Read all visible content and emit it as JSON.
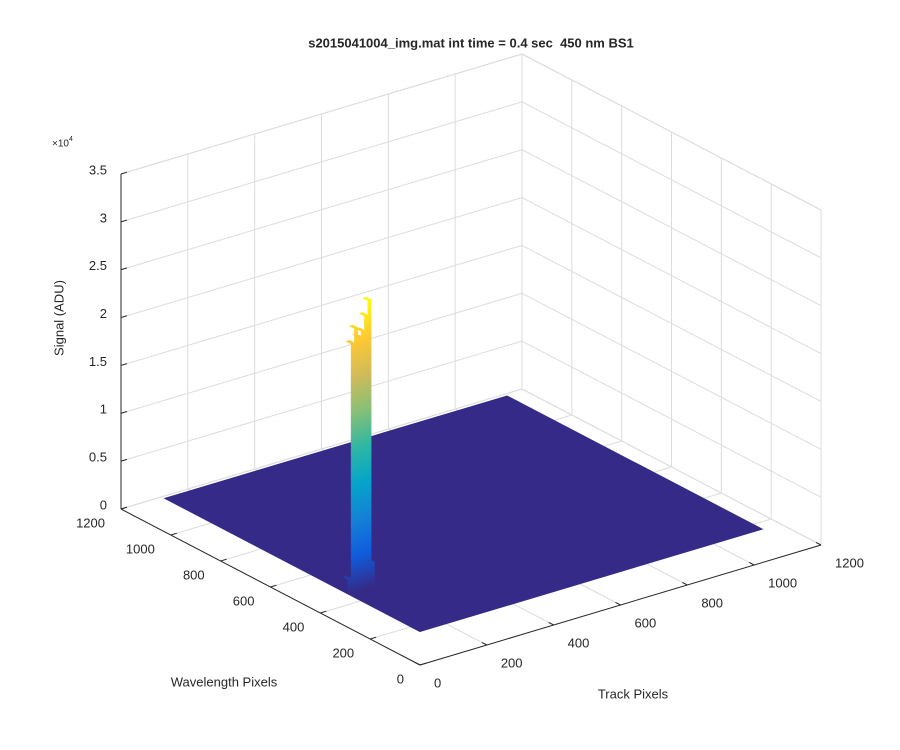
{
  "chart_data": {
    "type": "surface3d",
    "title": "s2015041004_img.mat int time = 0.4 sec  450 nm BS1",
    "xlabel": "Track Pixels",
    "ylabel": "Wavelength Pixels",
    "zlabel": "Signal (ADU)",
    "zexponent": "×10",
    "zexponent_power": "4",
    "xlim": [
      0,
      1200
    ],
    "xticks": [
      0,
      200,
      400,
      600,
      800,
      1000,
      1200
    ],
    "ylim": [
      0,
      1200
    ],
    "yticks": [
      0,
      200,
      400,
      600,
      800,
      1000,
      1200
    ],
    "zlim": [
      0,
      35000
    ],
    "zticks": [
      0,
      {
        "value": 5000,
        "label": "0.5"
      },
      {
        "value": 10000,
        "label": "1"
      },
      {
        "value": 15000,
        "label": "1.5"
      },
      {
        "value": 20000,
        "label": "2"
      },
      {
        "value": 25000,
        "label": "2.5"
      },
      {
        "value": 30000,
        "label": "3"
      },
      {
        "value": 35000,
        "label": "3.5"
      }
    ],
    "grid": true,
    "surface_x": [
      0,
      1024
    ],
    "surface_y": [
      0,
      1024
    ],
    "background": 3500,
    "color": "#352a87",
    "colormap": [
      "#352a87",
      "#0f5cdd",
      "#1481d6",
      "#06a4ca",
      "#2eb7a4",
      "#87bf77",
      "#d1bb59",
      "#fec832",
      "#f9fb0e"
    ],
    "series": [
      {
        "x": [
          5,
          15,
          25,
          35,
          45,
          55,
          65,
          75
        ],
        "y": 300,
        "values": [
          5000,
          29500,
          31000,
          30000,
          30500,
          32000,
          33500,
          6000
        ]
      }
    ]
  }
}
